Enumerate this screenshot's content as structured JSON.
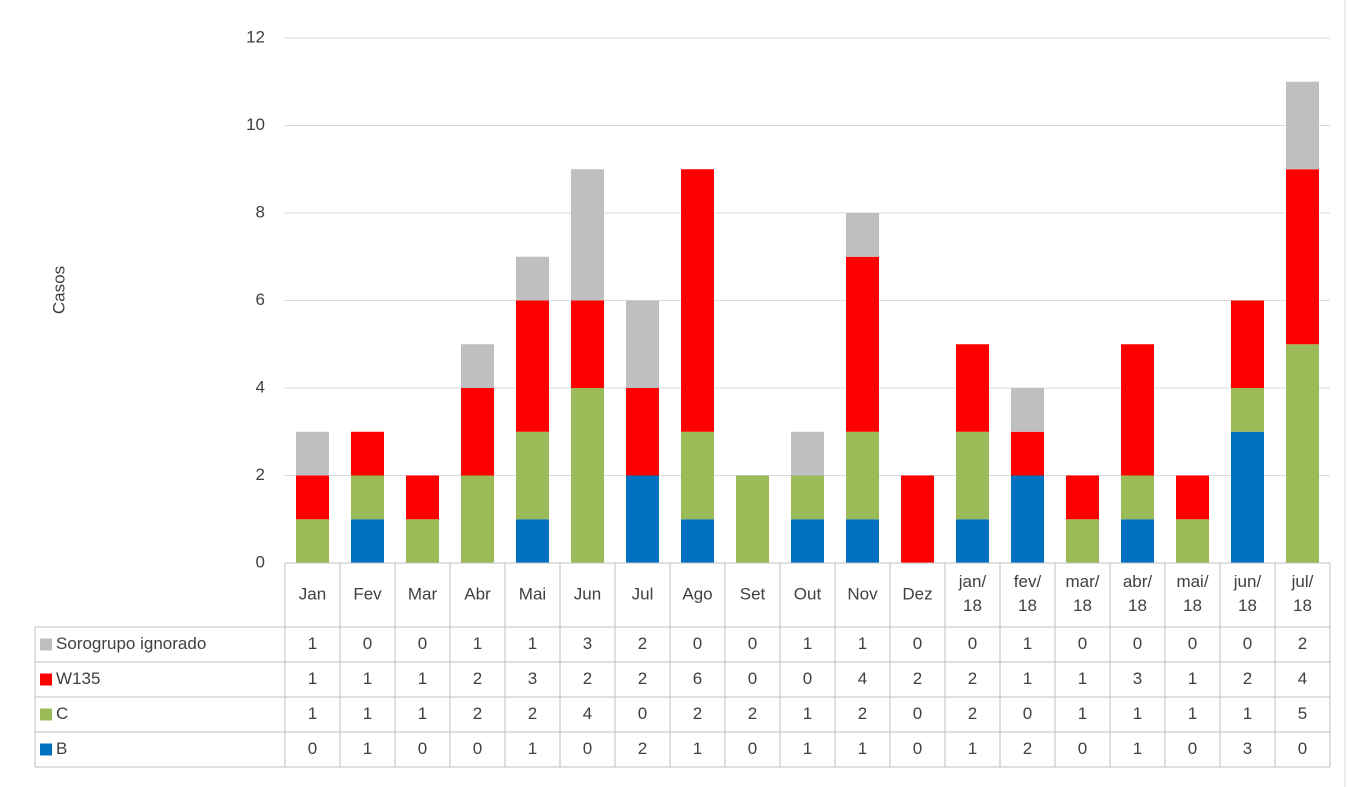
{
  "chart_data": {
    "type": "bar",
    "stacked": true,
    "y_label": "Casos",
    "categories": [
      "Jan",
      "Fev",
      "Mar",
      "Abr",
      "Mai",
      "Jun",
      "Jul",
      "Ago",
      "Set",
      "Out",
      "Nov",
      "Dez",
      "jan/18",
      "fev/18",
      "mar/18",
      "abr/18",
      "mai/18",
      "jun/18",
      "jul/18"
    ],
    "series": [
      {
        "name": "B",
        "color": "#0070c0",
        "values": [
          0,
          1,
          0,
          0,
          1,
          0,
          2,
          1,
          0,
          1,
          1,
          0,
          1,
          2,
          0,
          1,
          0,
          3,
          0
        ]
      },
      {
        "name": "C",
        "color": "#9bbb59",
        "values": [
          1,
          1,
          1,
          2,
          2,
          4,
          0,
          2,
          2,
          1,
          2,
          0,
          2,
          0,
          1,
          1,
          1,
          1,
          5
        ]
      },
      {
        "name": "W135",
        "color": "#ff0000",
        "values": [
          1,
          1,
          1,
          2,
          3,
          2,
          2,
          6,
          0,
          0,
          4,
          2,
          2,
          1,
          1,
          3,
          1,
          2,
          4
        ]
      },
      {
        "name": "Sorogrupo ignorado",
        "color": "#bfbfbf",
        "values": [
          1,
          0,
          0,
          1,
          1,
          3,
          2,
          0,
          0,
          1,
          1,
          0,
          0,
          1,
          0,
          0,
          0,
          0,
          2
        ]
      }
    ],
    "ylim": [
      0,
      12
    ],
    "yticks": [
      0,
      2,
      4,
      6,
      8,
      10,
      12
    ],
    "grid": true,
    "data_table": true
  }
}
